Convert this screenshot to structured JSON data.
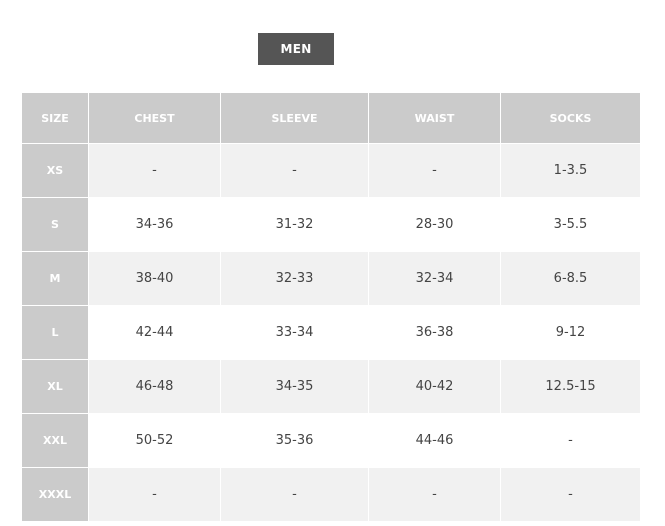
{
  "tab": {
    "label": "MEN"
  },
  "table": {
    "headers": [
      "SIZE",
      "CHEST",
      "SLEEVE",
      "WAIST",
      "SOCKS"
    ],
    "rows": [
      [
        "XS",
        "-",
        "-",
        "-",
        "1-3.5"
      ],
      [
        "S",
        "34-36",
        "31-32",
        "28-30",
        "3-5.5"
      ],
      [
        "M",
        "38-40",
        "32-33",
        "32-34",
        "6-8.5"
      ],
      [
        "L",
        "42-44",
        "33-34",
        "36-38",
        "9-12"
      ],
      [
        "XL",
        "46-48",
        "34-35",
        "40-42",
        "12.5-15"
      ],
      [
        "XXL",
        "50-52",
        "35-36",
        "44-46",
        "-"
      ],
      [
        "XXXL",
        "-",
        "-",
        "-",
        "-"
      ]
    ]
  }
}
